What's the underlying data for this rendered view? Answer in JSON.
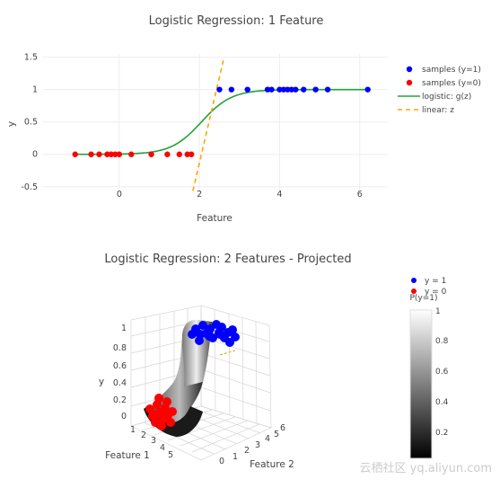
{
  "chart_data": [
    {
      "type": "scatter",
      "title": "Logistic Regression: 1 Feature",
      "xlabel": "Feature",
      "ylabel": "y",
      "xticks": [
        "0",
        "2",
        "4",
        "6"
      ],
      "yticks": [
        "-0.5",
        "0",
        "0.5",
        "1",
        "1.5"
      ],
      "xlim": [
        -1.9,
        6.7
      ],
      "ylim": [
        -0.6,
        1.55
      ],
      "grid": true,
      "legend_position": "right",
      "series": [
        {
          "name": "samples (y=1)",
          "kind": "markers",
          "color": "#0000ff",
          "x": [
            2.5,
            2.8,
            3.2,
            3.7,
            3.8,
            4.0,
            4.1,
            4.2,
            4.3,
            4.4,
            4.6,
            4.9,
            5.2,
            6.2
          ],
          "y": [
            1,
            1,
            1,
            1,
            1,
            1,
            1,
            1,
            1,
            1,
            1,
            1,
            1,
            1
          ]
        },
        {
          "name": "samples (y=0)",
          "kind": "markers",
          "color": "#ff0000",
          "x": [
            -1.1,
            -0.7,
            -0.5,
            -0.3,
            -0.2,
            -0.1,
            0.0,
            0.3,
            0.8,
            1.2,
            1.5,
            1.7,
            1.8
          ],
          "y": [
            0,
            0,
            0,
            0,
            0,
            0,
            0,
            0,
            0,
            0,
            0,
            0,
            0
          ]
        },
        {
          "name": "logistic: g(z)",
          "kind": "curve",
          "color": "#22a33a",
          "function": "1/(1+exp(-2.65*(x-2.05)))"
        },
        {
          "name": "linear: z",
          "kind": "dashed-line",
          "color": "#ffa500",
          "function": "2.65*(x-2.05)"
        }
      ]
    },
    {
      "type": "surface3d",
      "title": "Logistic Regression: 2 Features - Projected",
      "xlabel": "Feature 1",
      "ylabel": "Feature 2",
      "zlabel": "y",
      "zticks": [
        "0",
        "0.2",
        "0.4",
        "0.6",
        "0.8",
        "1"
      ],
      "xticks": [
        "1",
        "2",
        "3",
        "4",
        "5"
      ],
      "yticks": [
        "0",
        "1",
        "2",
        "3",
        "4",
        "5",
        "6"
      ],
      "colorbar": {
        "title": "P(y=1)",
        "ticks": [
          "1",
          "0.8",
          "0.6",
          "0.4",
          "0.2"
        ],
        "range": [
          0,
          1
        ]
      },
      "legend": [
        {
          "name": "y = 1",
          "color": "#0000ff"
        },
        {
          "name": "y = 0",
          "color": "#ff0000"
        }
      ]
    }
  ],
  "watermark": "云栖社区 yq.aliyun.com"
}
